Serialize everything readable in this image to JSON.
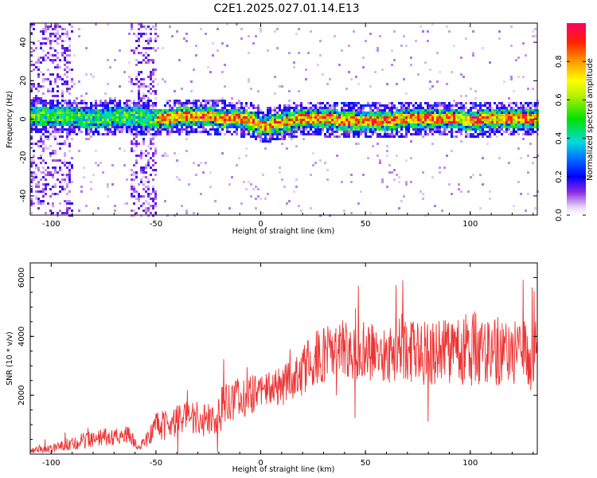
{
  "title": "C2E1.2025.027.01.14.E13",
  "chart_data": [
    {
      "type": "heatmap",
      "xlabel": "Height of straight line (km)",
      "ylabel": "Frequency (Hz)",
      "xlim": [
        -110,
        132
      ],
      "ylim": [
        -50,
        50
      ],
      "x_ticks": [
        -100,
        -50,
        0,
        50,
        100
      ],
      "y_ticks": [
        -40,
        -20,
        0,
        20,
        40
      ],
      "colorbar": {
        "label": "Normalized spectral amplitude",
        "range": [
          0,
          1
        ],
        "ticks": [
          0.0,
          0.2,
          0.4,
          0.6,
          0.8
        ],
        "tick_labels": [
          "0.0",
          "0.2",
          "0.4",
          "0.6",
          "0.8"
        ]
      },
      "ridge": {
        "description_points_x": [
          -110,
          -95,
          -80,
          -65,
          -50,
          -30,
          -15,
          -5,
          0,
          5,
          10,
          20,
          40,
          60,
          80,
          100,
          120,
          132
        ],
        "frequency_hz": [
          2,
          2,
          1,
          2,
          1,
          2,
          1,
          0,
          -3,
          -2,
          -1,
          1,
          0,
          0,
          1,
          0,
          1,
          1
        ]
      },
      "noise_bands_x": [
        [
          -110,
          -90
        ],
        [
          -63,
          -50
        ]
      ]
    },
    {
      "type": "line",
      "xlabel": "Height of straight line (km)",
      "ylabel": "SNR (10 * v/v)",
      "xlim": [
        -110,
        132
      ],
      "ylim": [
        0,
        6500
      ],
      "x_ticks": [
        -100,
        -50,
        0,
        50,
        100
      ],
      "y_ticks": [
        2000,
        4000,
        6000
      ],
      "color": "#ee3333",
      "envelope": {
        "x": [
          -110,
          -100,
          -90,
          -80,
          -70,
          -63,
          -58,
          -50,
          -40,
          -30,
          -22,
          -18,
          -10,
          0,
          10,
          20,
          22,
          30,
          40,
          50,
          60,
          70,
          80,
          90,
          100,
          110,
          120,
          132
        ],
        "mean": [
          150,
          200,
          350,
          550,
          600,
          650,
          200,
          900,
          1100,
          1200,
          1100,
          1700,
          1900,
          2150,
          2300,
          2800,
          3000,
          3400,
          3600,
          3500,
          3400,
          3500,
          3400,
          3500,
          3600,
          3500,
          3400,
          3500
        ],
        "spread": [
          120,
          150,
          250,
          300,
          300,
          300,
          120,
          500,
          550,
          600,
          550,
          700,
          700,
          650,
          700,
          800,
          900,
          1000,
          1000,
          1000,
          1000,
          1100,
          1100,
          1100,
          1300,
          1200,
          1200,
          1200
        ]
      }
    }
  ]
}
